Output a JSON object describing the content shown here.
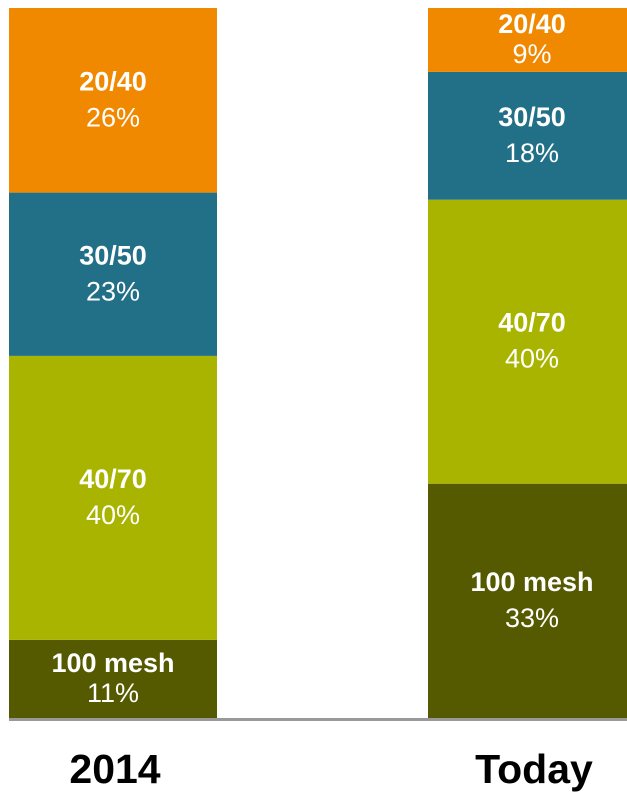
{
  "chart_data": {
    "type": "bar",
    "stacked": true,
    "categories": [
      "2014",
      "Today"
    ],
    "series": [
      {
        "name": "100 mesh",
        "color": "#555a00",
        "values": [
          11,
          33
        ],
        "labels": [
          "11%",
          "33%"
        ]
      },
      {
        "name": "40/70",
        "color": "#a8b400",
        "values": [
          40,
          40
        ],
        "labels": [
          "40%",
          "40%"
        ]
      },
      {
        "name": "30/50",
        "color": "#227087",
        "values": [
          23,
          18
        ],
        "labels": [
          "23%",
          "18%"
        ]
      },
      {
        "name": "20/40",
        "color": "#f08800",
        "values": [
          26,
          9
        ],
        "labels": [
          "26%",
          "9%"
        ]
      }
    ],
    "ylim": [
      0,
      100
    ],
    "axis_color": "#999999",
    "title": "",
    "xlabel": "",
    "ylabel": ""
  }
}
